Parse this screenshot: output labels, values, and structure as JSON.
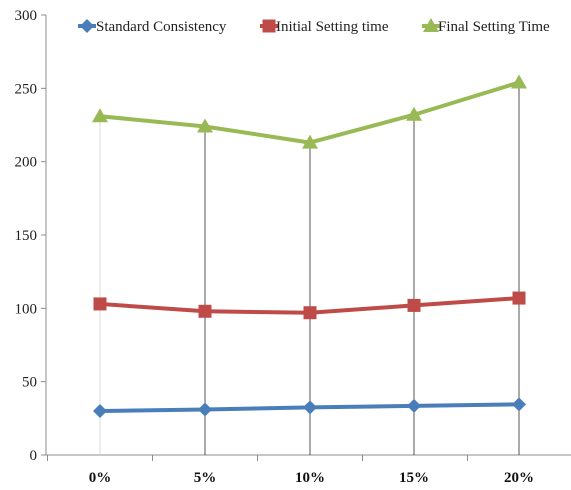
{
  "chart_data": {
    "type": "line",
    "categories": [
      "0%",
      "5%",
      "10%",
      "15%",
      "20%"
    ],
    "series": [
      {
        "name": "Standard Consistency",
        "values": [
          30,
          31,
          32.5,
          33.5,
          34.5
        ],
        "color": "#4a7ebb",
        "marker": "diamond"
      },
      {
        "name": "Initial Setting time",
        "values": [
          103,
          98,
          97,
          102,
          107
        ],
        "color": "#be4b48",
        "marker": "square"
      },
      {
        "name": "Final Setting Time",
        "values": [
          231,
          224,
          213,
          232,
          254
        ],
        "color": "#98b954",
        "marker": "triangle"
      }
    ],
    "ylim": [
      0,
      300
    ],
    "yticks": [
      "0",
      "50",
      "100",
      "150",
      "200",
      "250",
      "300"
    ],
    "xlabel": "",
    "ylabel": "",
    "title": "",
    "grid": false,
    "drop_lines": true,
    "legend_position": "top"
  }
}
